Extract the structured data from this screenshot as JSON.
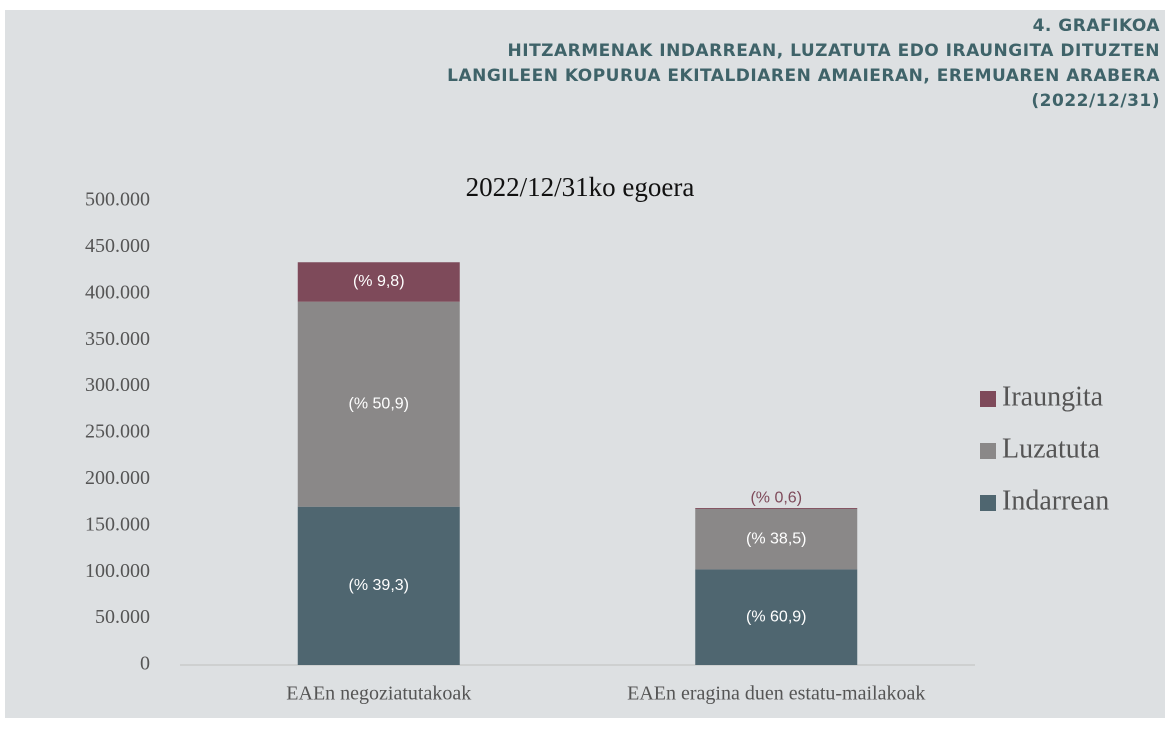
{
  "header": {
    "label": "4. GRAFIKOA",
    "title_lines": [
      "HITZARMENAK INDARREAN, LUZATUTA EDO IRAUNGITA DITUZTEN",
      "LANGILEEN KOPURUA EKITALDIAREN AMAIERAN, EREMUAREN ARABERA",
      "(2022/12/31)"
    ]
  },
  "chart_data": {
    "type": "stacked_bar",
    "title": "2022/12/31ko egoera",
    "categories": [
      "EAEn negoziatutakoak",
      "EAEn eragina duen estatu-mailakoak"
    ],
    "series": [
      {
        "name": "Indarrean",
        "color": "#4f6670",
        "values": [
          170600,
          103000
        ],
        "percent": [
          39.3,
          60.9
        ],
        "percent_labels": [
          "(% 39,3)",
          "(% 60,9)"
        ]
      },
      {
        "name": "Luzatuta",
        "color": "#8a8888",
        "values": [
          220900,
          65100
        ],
        "percent": [
          50.9,
          38.5
        ],
        "percent_labels": [
          "(% 50,9)",
          "(% 38,5)"
        ]
      },
      {
        "name": "Iraungita",
        "color": "#7e4a5a",
        "values": [
          42500,
          1000
        ],
        "percent": [
          9.8,
          0.6
        ],
        "percent_labels": [
          "(% 9,8)",
          "(% 0,6)"
        ]
      }
    ],
    "ylim": [
      0,
      500000
    ],
    "yticks": [
      0,
      {
        "value": 50000,
        "label": "50.000"
      },
      {
        "value": 100000,
        "label": "100.000"
      },
      {
        "value": 150000,
        "label": "150.000"
      },
      {
        "value": 200000,
        "label": "200.000"
      },
      {
        "value": 250000,
        "label": "250.000"
      },
      {
        "value": 300000,
        "label": "300.000"
      },
      {
        "value": 350000,
        "label": "350.000"
      },
      {
        "value": 400000,
        "label": "400.000"
      },
      {
        "value": 450000,
        "label": "450.000"
      },
      {
        "value": 500000,
        "label": "500.000"
      }
    ],
    "legend": "right"
  }
}
